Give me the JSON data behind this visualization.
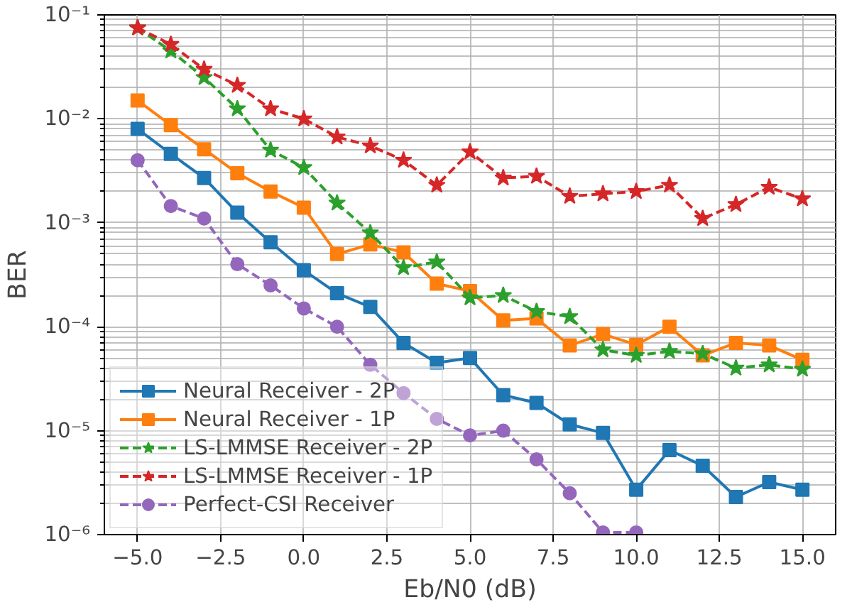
{
  "chart_data": {
    "type": "line",
    "xlabel": "Eb/N0 (dB)",
    "ylabel": "BER",
    "log": "y",
    "grid": true,
    "legend": "bottom left",
    "xlim": [
      -6,
      16
    ],
    "ylim": [
      1e-06,
      0.1
    ],
    "xticks": [
      {
        "value": -5,
        "label": "−5.0"
      },
      {
        "value": -2.5,
        "label": "−2.5"
      },
      {
        "value": 0,
        "label": "0.0"
      },
      {
        "value": 2.5,
        "label": "2.5"
      },
      {
        "value": 5,
        "label": "5.0"
      },
      {
        "value": 7.5,
        "label": "7.5"
      },
      {
        "value": 10,
        "label": "10.0"
      },
      {
        "value": 12.5,
        "label": "12.5"
      },
      {
        "value": 15,
        "label": "15.0"
      }
    ],
    "yticks": [
      {
        "value": 1e-06,
        "label": "10⁻⁶"
      },
      {
        "value": 1e-05,
        "label": "10⁻⁵"
      },
      {
        "value": 0.0001,
        "label": "10⁻⁴"
      },
      {
        "value": 0.001,
        "label": "10⁻³"
      },
      {
        "value": 0.01,
        "label": "10⁻²"
      },
      {
        "value": 0.1,
        "label": "10⁻¹"
      }
    ],
    "x": [
      -5,
      -4,
      -3,
      -2,
      -1,
      0,
      1,
      2,
      3,
      4,
      5,
      6,
      7,
      8,
      9,
      10,
      11,
      12,
      13,
      14,
      15
    ],
    "series": [
      {
        "name": "Neural Receiver - 2P",
        "color": "#1f77b4",
        "marker": "square",
        "line_style": "solid",
        "values": [
          0.008,
          0.0046,
          0.0027,
          0.00125,
          0.00065,
          0.00035,
          0.00021,
          0.000155,
          7e-05,
          4.5e-05,
          5e-05,
          2.2e-05,
          1.85e-05,
          1.15e-05,
          9.5e-06,
          2.7e-06,
          6.5e-06,
          4.6e-06,
          2.3e-06,
          3.2e-06,
          2.7e-06
        ]
      },
      {
        "name": "Neural Receiver - 1P",
        "color": "#ff7f0e",
        "marker": "square",
        "line_style": "solid",
        "values": [
          0.015,
          0.0087,
          0.0051,
          0.003,
          0.002,
          0.0014,
          0.0005,
          0.00062,
          0.00052,
          0.00026,
          0.00022,
          0.000115,
          0.00012,
          6.6e-05,
          8.5e-05,
          6.7e-05,
          0.0001,
          5.3e-05,
          7e-05,
          6.6e-05,
          4.8e-05
        ]
      },
      {
        "name": "LS-LMMSE Receiver - 2P",
        "color": "#2ca02c",
        "marker": "star",
        "line_style": "dashed",
        "values": [
          0.075,
          0.045,
          0.025,
          0.0125,
          0.005,
          0.0034,
          0.00155,
          0.0008,
          0.00037,
          0.00042,
          0.00019,
          0.0002,
          0.00014,
          0.000125,
          6e-05,
          5.3e-05,
          5.8e-05,
          5.5e-05,
          4e-05,
          4.3e-05,
          3.9e-05
        ]
      },
      {
        "name": "LS-LMMSE Receiver - 1P",
        "color": "#d62728",
        "marker": "star",
        "line_style": "dashed",
        "values": [
          0.075,
          0.052,
          0.03,
          0.021,
          0.0125,
          0.01,
          0.0067,
          0.0055,
          0.004,
          0.0023,
          0.0048,
          0.0027,
          0.0028,
          0.0018,
          0.0019,
          0.002,
          0.0023,
          0.0011,
          0.0015,
          0.0022,
          0.0017
        ]
      },
      {
        "name": "Perfect-CSI Receiver",
        "color": "#9467bd",
        "marker": "circle",
        "line_style": "dashed",
        "x": [
          -5,
          -4,
          -3,
          -2,
          -1,
          0,
          1,
          2,
          3,
          4,
          5,
          6,
          7,
          8,
          9,
          10
        ],
        "values": [
          0.004,
          0.00145,
          0.0011,
          0.0004,
          0.00025,
          0.00015,
          0.0001,
          4.3e-05,
          2.3e-05,
          1.3e-05,
          9e-06,
          1e-05,
          5.3e-06,
          2.5e-06,
          1.05e-06,
          1.05e-06
        ]
      }
    ]
  }
}
